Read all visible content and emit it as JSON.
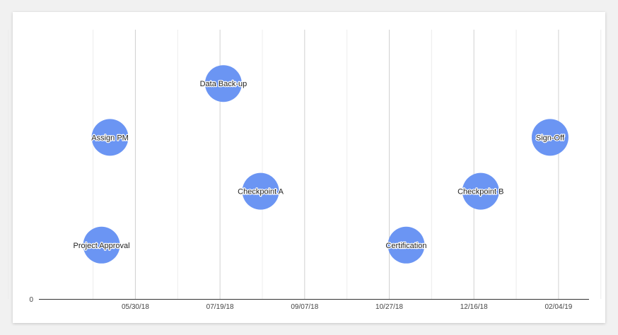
{
  "chart_data": {
    "type": "scatter",
    "title": "",
    "xlabel": "",
    "ylabel": "",
    "xlim": [
      "2018-04-03",
      "2019-02-22"
    ],
    "ylim": [
      0,
      5
    ],
    "x_ticks": [
      "05/30/18",
      "07/19/18",
      "09/07/18",
      "10/27/18",
      "12/16/18",
      "02/04/19"
    ],
    "y_ticks": [
      "0"
    ],
    "grid": true,
    "legend": "none",
    "marker_color": "#6b95f3",
    "points": [
      {
        "label": "Project Approval",
        "x": "2018-05-10",
        "y": 1
      },
      {
        "label": "Assign PM",
        "x": "2018-05-15",
        "y": 3
      },
      {
        "label": "Data Back-up",
        "x": "2018-07-21",
        "y": 4
      },
      {
        "label": "Checkpoint A",
        "x": "2018-08-12",
        "y": 2
      },
      {
        "label": "Certification",
        "x": "2018-11-06",
        "y": 1
      },
      {
        "label": "Checkpoint B",
        "x": "2018-12-20",
        "y": 2
      },
      {
        "label": "Sign-Off",
        "x": "2019-01-30",
        "y": 3
      }
    ]
  }
}
